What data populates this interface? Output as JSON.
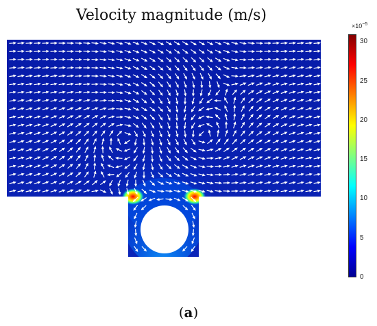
{
  "title": "Velocity magnitude (m/s)",
  "caption": {
    "open": "(",
    "label": "a",
    "close": ")"
  },
  "colorbar": {
    "multiplier_base": "×10",
    "multiplier_exp": "−5",
    "ticks": [
      "30",
      "25",
      "20",
      "15",
      "10",
      "5",
      "0"
    ],
    "tick_values": [
      30,
      25,
      20,
      15,
      10,
      5,
      0
    ],
    "range": [
      0,
      31
    ],
    "colormap": [
      "#00008f",
      "#0000ff",
      "#0080ff",
      "#00ffff",
      "#80ff80",
      "#ffff00",
      "#ff8000",
      "#ff0000",
      "#800000"
    ]
  },
  "colors": {
    "field_base": "#0a1fb0",
    "field_dark": "#00139e",
    "arrow": "#ffffff",
    "hotspot": "#ff3000"
  }
}
